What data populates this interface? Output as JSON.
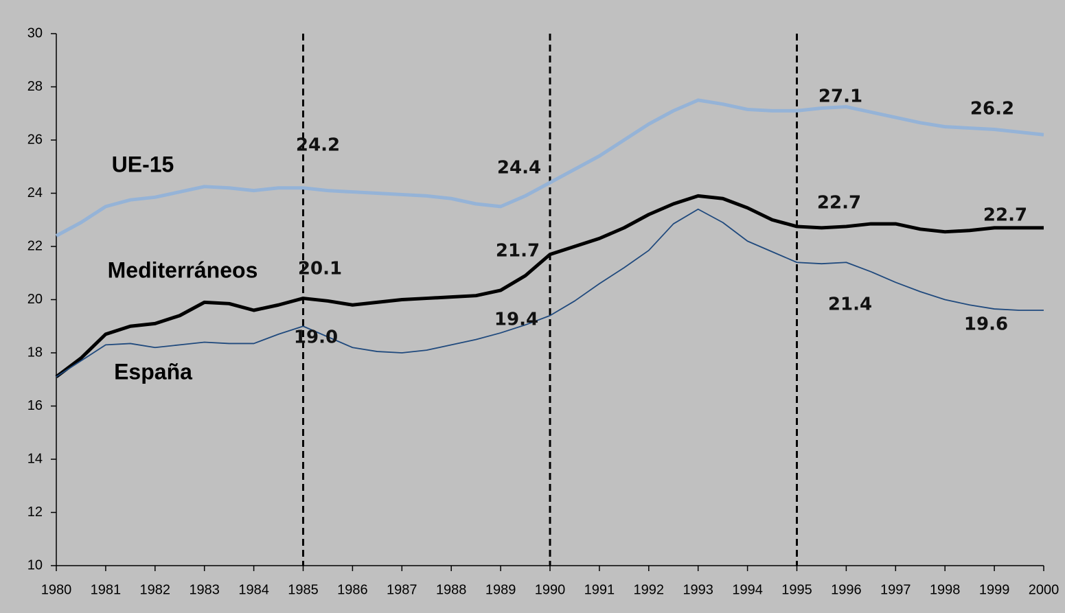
{
  "chart_data": {
    "type": "line",
    "x": [
      1980,
      1980.5,
      1981,
      1981.5,
      1982,
      1982.5,
      1983,
      1983.5,
      1984,
      1984.5,
      1985,
      1985.5,
      1986,
      1986.5,
      1987,
      1987.5,
      1988,
      1988.5,
      1989,
      1989.5,
      1990,
      1990.5,
      1991,
      1991.5,
      1992,
      1992.5,
      1993,
      1993.5,
      1994,
      1994.5,
      1995,
      1995.5,
      1996,
      1996.5,
      1997,
      1997.5,
      1998,
      1998.5,
      1999,
      1999.5,
      2000
    ],
    "series": [
      {
        "name": "UE-15",
        "color": "#95b3d7",
        "width": 5,
        "values": [
          22.4,
          22.9,
          23.5,
          23.75,
          23.85,
          24.05,
          24.25,
          24.2,
          24.1,
          24.2,
          24.2,
          24.1,
          24.05,
          24.0,
          23.95,
          23.9,
          23.8,
          23.6,
          23.5,
          23.9,
          24.4,
          24.9,
          25.4,
          26.0,
          26.6,
          27.1,
          27.5,
          27.35,
          27.15,
          27.1,
          27.1,
          27.2,
          27.25,
          27.05,
          26.85,
          26.65,
          26.5,
          26.45,
          26.4,
          26.3,
          26.2
        ]
      },
      {
        "name": "Mediterráneos",
        "color": "#000000",
        "width": 5,
        "values": [
          17.1,
          17.8,
          18.7,
          19.0,
          19.1,
          19.4,
          19.9,
          19.85,
          19.6,
          19.8,
          20.05,
          19.95,
          19.8,
          19.9,
          20.0,
          20.05,
          20.1,
          20.15,
          20.35,
          20.9,
          21.7,
          22.0,
          22.3,
          22.7,
          23.2,
          23.6,
          23.9,
          23.8,
          23.45,
          23.0,
          22.75,
          22.7,
          22.75,
          22.85,
          22.85,
          22.65,
          22.55,
          22.6,
          22.7,
          22.7,
          22.7
        ]
      },
      {
        "name": "España",
        "color": "#1f497d",
        "width": 1.8,
        "values": [
          17.1,
          17.7,
          18.3,
          18.35,
          18.2,
          18.3,
          18.4,
          18.35,
          18.35,
          18.7,
          19.0,
          18.6,
          18.2,
          18.05,
          18.0,
          18.1,
          18.3,
          18.5,
          18.75,
          19.05,
          19.4,
          19.95,
          20.6,
          21.2,
          21.85,
          22.85,
          23.4,
          22.9,
          22.2,
          21.8,
          21.4,
          21.35,
          21.4,
          21.05,
          20.65,
          20.3,
          20.0,
          19.8,
          19.65,
          19.6,
          19.6
        ]
      }
    ],
    "annotations": [
      "24.2",
      "24.4",
      "27.1",
      "26.2",
      "22.7",
      "22.7",
      "20.1",
      "21.7",
      "21.4",
      "19.0",
      "19.4",
      "19.6"
    ],
    "vlines": [
      1985,
      1990,
      1995
    ],
    "xlim": [
      1980,
      2000
    ],
    "xticks": [
      1980,
      1981,
      1982,
      1983,
      1984,
      1985,
      1986,
      1987,
      1988,
      1989,
      1990,
      1991,
      1992,
      1993,
      1994,
      1995,
      1996,
      1997,
      1998,
      1999,
      2000
    ],
    "ylim": [
      10,
      30
    ],
    "yticks": [
      10,
      12,
      14,
      16,
      18,
      20,
      22,
      24,
      26,
      28,
      30
    ]
  }
}
